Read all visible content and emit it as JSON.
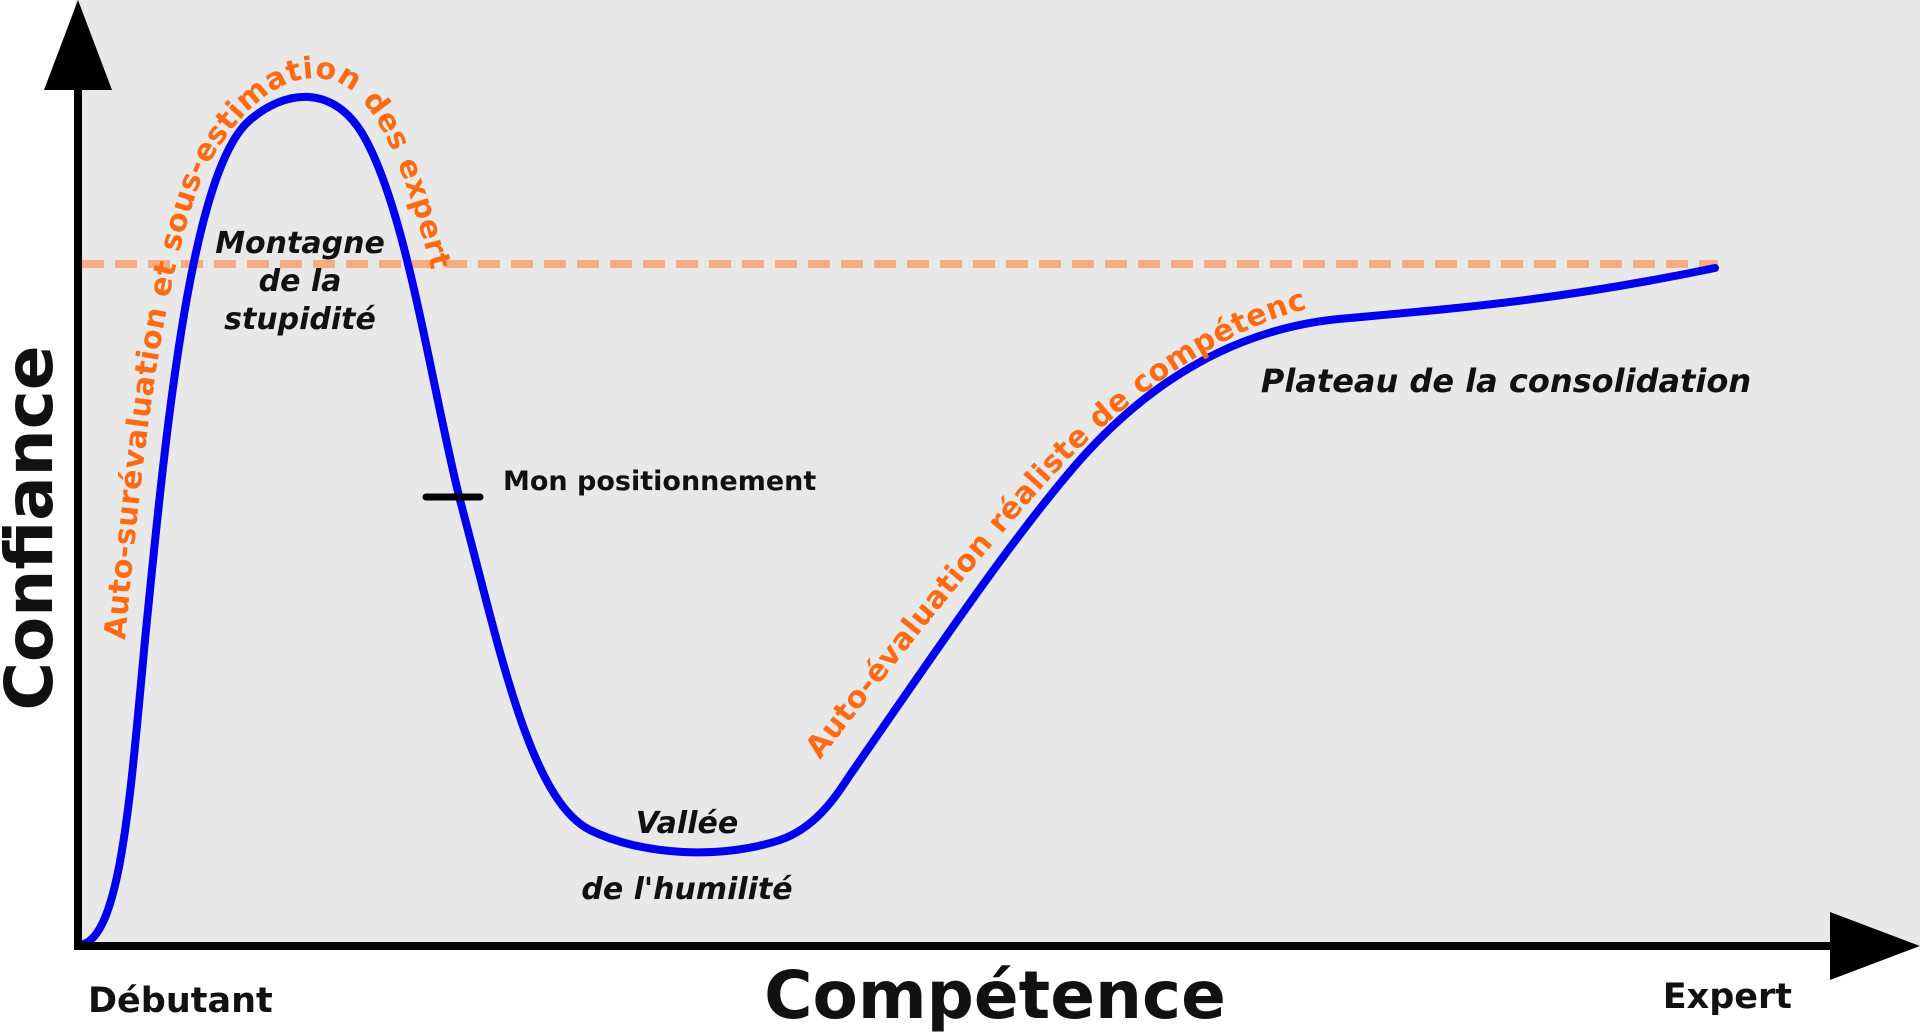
{
  "axes": {
    "y_label": "Confiance",
    "x_label": "Compétence",
    "x_start_label": "Débutant",
    "x_end_label": "Expert"
  },
  "stages": {
    "mountain": [
      "Montagne",
      "de la",
      "stupidité"
    ],
    "valley": [
      "Vallée",
      "de l'humilité"
    ],
    "plateau": "Plateau de la consolidation"
  },
  "marker": {
    "label": "Mon positionnement"
  },
  "annotations": {
    "overestimation": "Auto-surévaluation et sous-estimation des experts",
    "realistic": "Auto-évaluation réaliste de compétence"
  },
  "colors": {
    "curve": "#0000ee",
    "dashed_line": "#f4ac80",
    "annotation_text": "#ff6a13",
    "background": "#e8e8e8",
    "axis": "#000000"
  }
}
